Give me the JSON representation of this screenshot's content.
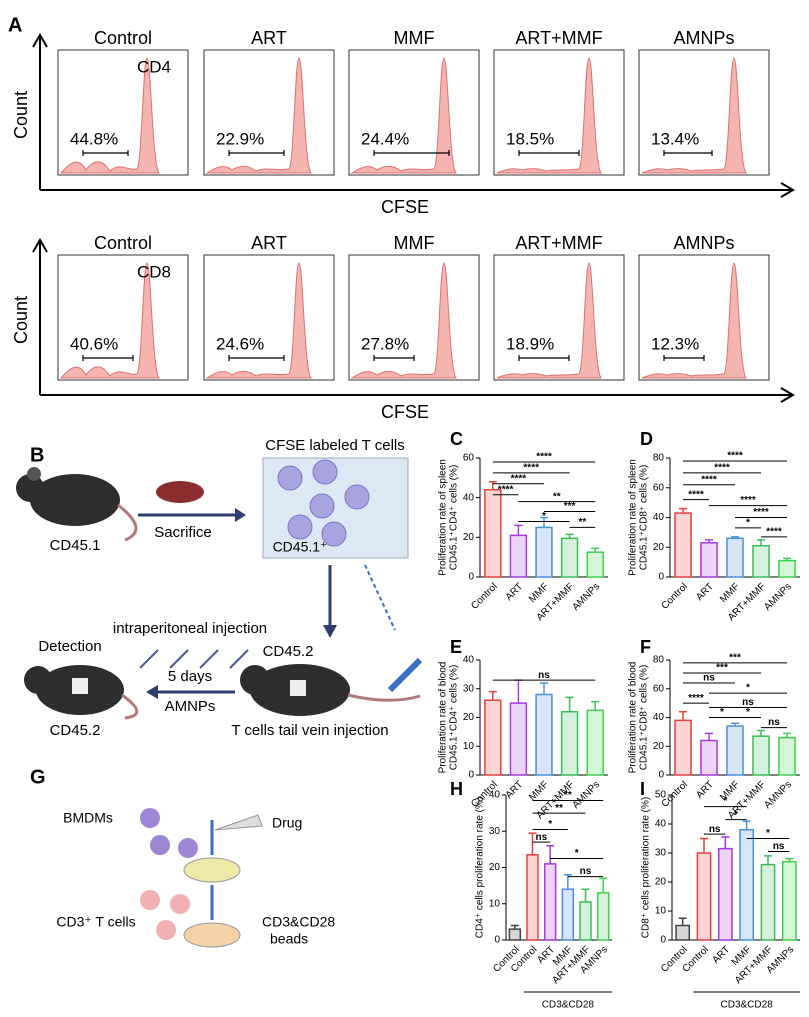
{
  "flow": {
    "label": "A",
    "rows": [
      {
        "marker": "CD4",
        "xlabel": "CFSE",
        "ylabel": "Count",
        "groups": [
          "Control",
          "ART",
          "MMF",
          "ART+MMF",
          "AMNPs"
        ],
        "percents": [
          "44.8%",
          "22.9%",
          "24.4%",
          "18.5%",
          "13.4%"
        ]
      },
      {
        "marker": "CD8",
        "xlabel": "CFSE",
        "ylabel": "Count",
        "groups": [
          "Control",
          "ART",
          "MMF",
          "ART+MMF",
          "AMNPs"
        ],
        "percents": [
          "40.6%",
          "24.6%",
          "27.8%",
          "18.9%",
          "12.3%"
        ]
      }
    ]
  },
  "schematic_b": {
    "label": "B",
    "cells_title": "CFSE labeled  T cells",
    "sacrifice": "Sacrifice",
    "donor": "CD45.1",
    "cells": "CD45.1⁺",
    "ip": "intraperitoneal injection",
    "detection": "Detection",
    "recipient": "CD45.2",
    "days": "5 days",
    "drug": "AMNPs",
    "recipient2": "CD45.2",
    "iv": "T cells tail vein injection"
  },
  "schematic_g": {
    "label": "G",
    "bmdm": "BMDMs",
    "drug": "Drug",
    "tcells": "CD3⁺ T cells",
    "beads1": "CD3&CD28",
    "beads2": "beads"
  },
  "chart_data": [
    {
      "type": "bar",
      "label": "C",
      "ylabel": [
        "Proliferation rate of spleen",
        "CD45.1⁺CD4⁺ cells (%)"
      ],
      "categories": [
        "Control",
        "ART",
        "MMF",
        "ART+MMF",
        "AMNPs"
      ],
      "values": [
        44,
        21,
        25,
        19.5,
        12.5
      ],
      "errors": [
        4,
        5,
        5,
        2,
        2
      ],
      "colors": [
        "#e8413c",
        "#a63adf",
        "#4a8fe0",
        "#3cbd5a",
        "#3fd052"
      ],
      "ylim": [
        0,
        60
      ],
      "yticks": [
        0,
        20,
        40,
        60
      ],
      "annotations": [
        "****",
        "****",
        "****",
        "****",
        "**",
        "***",
        "*",
        "**"
      ]
    },
    {
      "type": "bar",
      "label": "D",
      "ylabel": [
        "Proliferation rate of spleen",
        "CD45.1⁺CD8⁺ cells (%)"
      ],
      "categories": [
        "Control",
        "ART",
        "MMF",
        "ART+MMF",
        "AMNPs"
      ],
      "values": [
        43,
        23,
        26,
        21,
        11
      ],
      "errors": [
        3,
        2,
        1,
        4,
        1.5
      ],
      "colors": [
        "#e8413c",
        "#a63adf",
        "#4a8fe0",
        "#3cbd5a",
        "#3fd052"
      ],
      "ylim": [
        0,
        80
      ],
      "yticks": [
        0,
        20,
        40,
        60,
        80
      ],
      "annotations": [
        "****",
        "****",
        "****",
        "****",
        "****",
        "****",
        "*",
        "****"
      ]
    },
    {
      "type": "bar",
      "label": "E",
      "ylabel": [
        "Proliferation rate of blood",
        "CD45.1⁺CD4⁺ cells (%)"
      ],
      "categories": [
        "Control",
        "ART",
        "MMF",
        "ART+MMF",
        "AMNPs"
      ],
      "values": [
        26,
        25,
        28,
        22,
        22.5
      ],
      "errors": [
        3,
        8,
        4,
        5,
        3
      ],
      "colors": [
        "#e8413c",
        "#a63adf",
        "#4a8fe0",
        "#3cbd5a",
        "#3fd052"
      ],
      "ylim": [
        0,
        40
      ],
      "yticks": [
        0,
        10,
        20,
        30,
        40
      ],
      "annotations": [
        "ns"
      ]
    },
    {
      "type": "bar",
      "label": "F",
      "ylabel": [
        "Proliferation rate of blood",
        "CD45.1⁺CD8⁺ cells (%)"
      ],
      "categories": [
        "Control",
        "ART",
        "MMF",
        "ART+MMF",
        "AMNPs"
      ],
      "values": [
        38,
        24,
        34,
        27,
        26
      ],
      "errors": [
        6,
        5,
        2,
        4,
        3
      ],
      "colors": [
        "#e8413c",
        "#a63adf",
        "#4a8fe0",
        "#3cbd5a",
        "#3fd052"
      ],
      "ylim": [
        0,
        80
      ],
      "yticks": [
        0,
        20,
        40,
        60,
        80
      ],
      "annotations": [
        "***",
        "***",
        "ns",
        "*",
        "****",
        "ns",
        "*",
        "*",
        "ns"
      ]
    },
    {
      "type": "bar",
      "label": "H",
      "ylabel": [
        "CD4⁺ cells proliferation rate (%)"
      ],
      "categories": [
        "Control",
        "Control",
        "ART",
        "MMF",
        "ART+MMF",
        "AMNPs"
      ],
      "values": [
        3,
        23.5,
        21,
        14,
        10.5,
        13
      ],
      "errors": [
        1,
        6,
        5,
        4,
        3.5,
        4
      ],
      "colors": [
        "#444444",
        "#e8413c",
        "#a63adf",
        "#4a8fe0",
        "#3cbd5a",
        "#3fd052"
      ],
      "ylim": [
        0,
        40
      ],
      "yticks": [
        0,
        10,
        20,
        30,
        40
      ],
      "annotations": [
        "**",
        "**",
        "*",
        "ns",
        "*",
        "ns"
      ],
      "group_label": "CD3&CD28"
    },
    {
      "type": "bar",
      "label": "I",
      "ylabel": [
        "CD8⁺ cells proliferation rate (%)"
      ],
      "categories": [
        "Control",
        "Control",
        "ART",
        "MMF",
        "ART+MMF",
        "AMNPs"
      ],
      "values": [
        5,
        30,
        31.5,
        38,
        26,
        27
      ],
      "errors": [
        2.5,
        5,
        4,
        3,
        3,
        1
      ],
      "colors": [
        "#444444",
        "#e8413c",
        "#a63adf",
        "#4a8fe0",
        "#3cbd5a",
        "#3fd052"
      ],
      "ylim": [
        0,
        50
      ],
      "yticks": [
        0,
        10,
        20,
        30,
        40,
        50
      ],
      "annotations": [
        "*",
        "*",
        "ns",
        "*",
        "ns"
      ],
      "group_label": "CD3&CD28"
    }
  ]
}
